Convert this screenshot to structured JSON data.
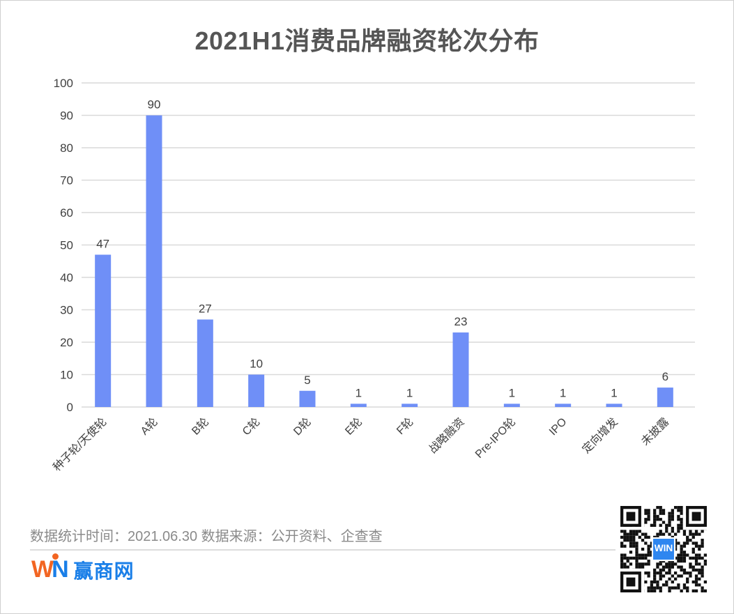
{
  "title": "2021H1消费品牌融资轮次分布",
  "footer": {
    "note": "数据统计时间：2021.06.30  数据来源：公开资料、企查查",
    "brand_latin": "WIN",
    "brand_cn": "赢商网"
  },
  "qr_code": {
    "label": "QR code",
    "center_logo": "WIN 赢商网"
  },
  "colors": {
    "bar": "#6f8ff7",
    "grid": "#d9d9d9",
    "axis_text": "#404040",
    "title": "#555555"
  },
  "chart_data": {
    "type": "bar",
    "title": "2021H1消费品牌融资轮次分布",
    "xlabel": "",
    "ylabel": "",
    "categories": [
      "种子轮/天使轮",
      "A轮",
      "B轮",
      "C轮",
      "D轮",
      "E轮",
      "F轮",
      "战略融资",
      "Pre-IPO轮",
      "IPO",
      "定向增发",
      "未披露"
    ],
    "values": [
      47,
      90,
      27,
      10,
      5,
      1,
      1,
      23,
      1,
      1,
      1,
      6
    ],
    "ylim": [
      0,
      100
    ],
    "yticks": [
      0,
      10,
      20,
      30,
      40,
      50,
      60,
      70,
      80,
      90,
      100
    ],
    "grid": true,
    "legend": "none",
    "data_labels": true
  }
}
